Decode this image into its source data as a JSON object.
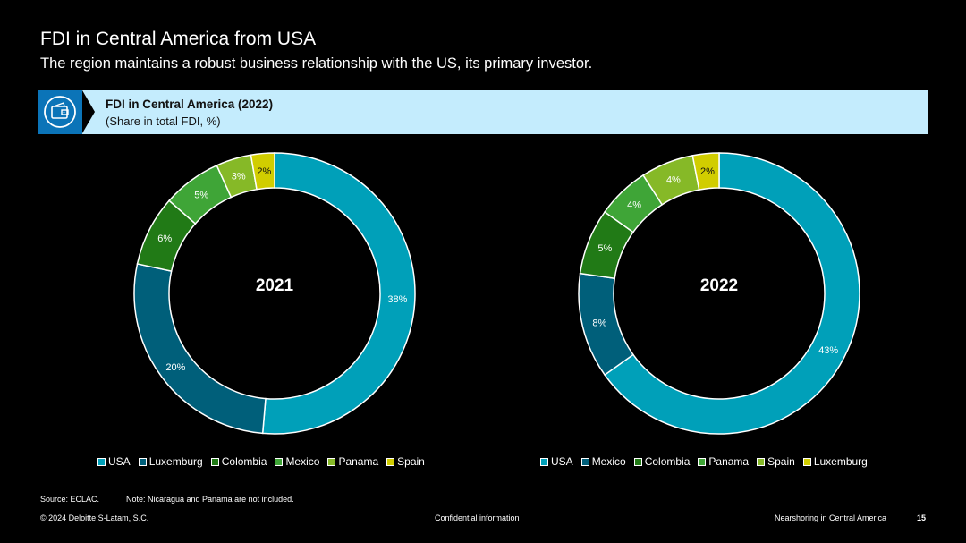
{
  "header": {
    "title": "FDI in Central America from USA",
    "subtitle": "The region maintains a robust business relationship with the US, its primary investor."
  },
  "banner": {
    "icon": "wallet-icon",
    "title": "FDI in Central America (2022)",
    "subtitle": "(Share in total FDI, %)"
  },
  "colors": {
    "USA": "#00a0b9",
    "second": "#005f7a",
    "dark_green": "#217a16",
    "mid_green": "#3fa537",
    "light_green": "#86b927",
    "yellow": "#d1cd00",
    "banner_bg": "#c4ecfd",
    "icon_bg": "#0b74b8"
  },
  "chart_data": [
    {
      "type": "pie",
      "center_label": "2021",
      "slices": [
        {
          "name": "USA",
          "value": 38,
          "label": "38%",
          "color": "#00a0b9"
        },
        {
          "name": "Luxemburg",
          "value": 20,
          "label": "20%",
          "color": "#005f7a"
        },
        {
          "name": "Colombia",
          "value": 6,
          "label": "6%",
          "color": "#217a16"
        },
        {
          "name": "Mexico",
          "value": 5,
          "label": "5%",
          "color": "#3fa537"
        },
        {
          "name": "Panama",
          "value": 3,
          "label": "3%",
          "color": "#86b927"
        },
        {
          "name": "Spain",
          "value": 2,
          "label": "2%",
          "color": "#d1cd00"
        }
      ],
      "legend": [
        "USA",
        "Luxemburg",
        "Colombia",
        "Mexico",
        "Panama",
        "Spain"
      ],
      "legend_position": "bottom"
    },
    {
      "type": "pie",
      "center_label": "2022",
      "slices": [
        {
          "name": "USA",
          "value": 43,
          "label": "43%",
          "color": "#00a0b9"
        },
        {
          "name": "Mexico",
          "value": 8,
          "label": "8%",
          "color": "#005f7a"
        },
        {
          "name": "Colombia",
          "value": 5,
          "label": "5%",
          "color": "#217a16"
        },
        {
          "name": "Panama",
          "value": 4,
          "label": "4%",
          "color": "#3fa537"
        },
        {
          "name": "Spain",
          "value": 4,
          "label": "4%",
          "color": "#86b927"
        },
        {
          "name": "Luxemburg",
          "value": 2,
          "label": "2%",
          "color": "#d1cd00"
        }
      ],
      "legend": [
        "USA",
        "Mexico",
        "Colombia",
        "Panama",
        "Spain",
        "Luxemburg"
      ],
      "legend_position": "bottom"
    }
  ],
  "source": "Source: ECLAC.",
  "note": "Note: Nicaragua and Panama are not included.",
  "footer": {
    "copyright": "© 2024 Deloitte S-Latam, S.C.",
    "confidential": "Confidential information",
    "section": "Nearshoring in Central America",
    "page": "15"
  }
}
